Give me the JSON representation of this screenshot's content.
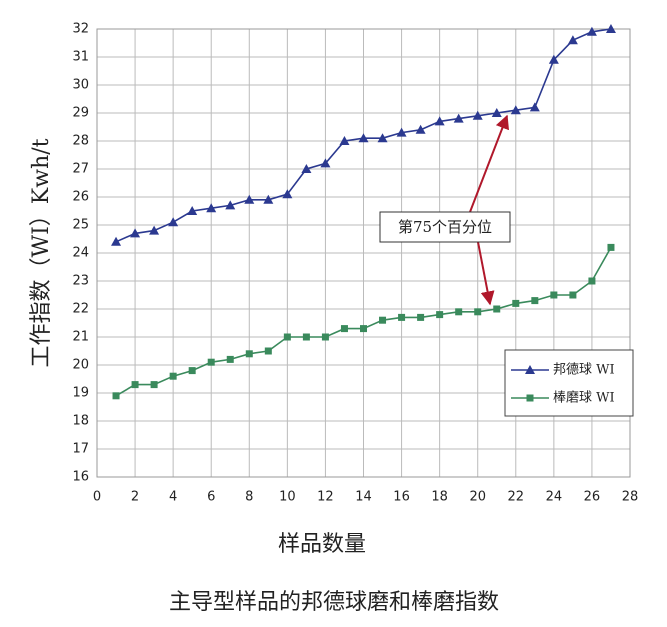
{
  "chart_data": {
    "type": "line",
    "title": "主导型样品的邦德球磨和棒磨指数",
    "x_label": "样品数量",
    "y_label": "工作指数（WI）Kwh/t",
    "annotation": "第75个百分位",
    "x": [
      1,
      2,
      3,
      4,
      5,
      6,
      7,
      8,
      9,
      10,
      11,
      12,
      13,
      14,
      15,
      16,
      17,
      18,
      19,
      20,
      21,
      22,
      23,
      24,
      25,
      26,
      27
    ],
    "series": [
      {
        "name": "邦德球 WI",
        "color": "#2b3990",
        "marker": "triangle",
        "values": [
          24.4,
          24.7,
          24.8,
          25.1,
          25.5,
          25.6,
          25.7,
          25.9,
          25.9,
          26.1,
          27.0,
          27.2,
          28.0,
          28.1,
          28.1,
          28.3,
          28.4,
          28.7,
          28.8,
          28.9,
          29.0,
          29.1,
          29.2,
          30.9,
          31.6,
          31.9,
          32.0
        ]
      },
      {
        "name": "棒磨球 WI",
        "color": "#3a8a5c",
        "marker": "square",
        "values": [
          18.9,
          19.3,
          19.3,
          19.6,
          19.8,
          20.1,
          20.2,
          20.4,
          20.5,
          21.0,
          21.0,
          21.0,
          21.3,
          21.3,
          21.6,
          21.7,
          21.7,
          21.8,
          21.9,
          21.9,
          22.0,
          22.2,
          22.3,
          22.5,
          22.5,
          23.0,
          24.2
        ]
      }
    ],
    "xlim": [
      0,
      28
    ],
    "xticks": [
      0,
      2,
      4,
      6,
      8,
      10,
      12,
      14,
      16,
      18,
      20,
      22,
      24,
      26,
      28
    ],
    "ylim": [
      16,
      32
    ],
    "yticks": [
      16,
      17,
      18,
      19,
      20,
      21,
      22,
      23,
      24,
      25,
      26,
      27,
      28,
      29,
      30,
      31,
      32
    ],
    "grid": true
  }
}
